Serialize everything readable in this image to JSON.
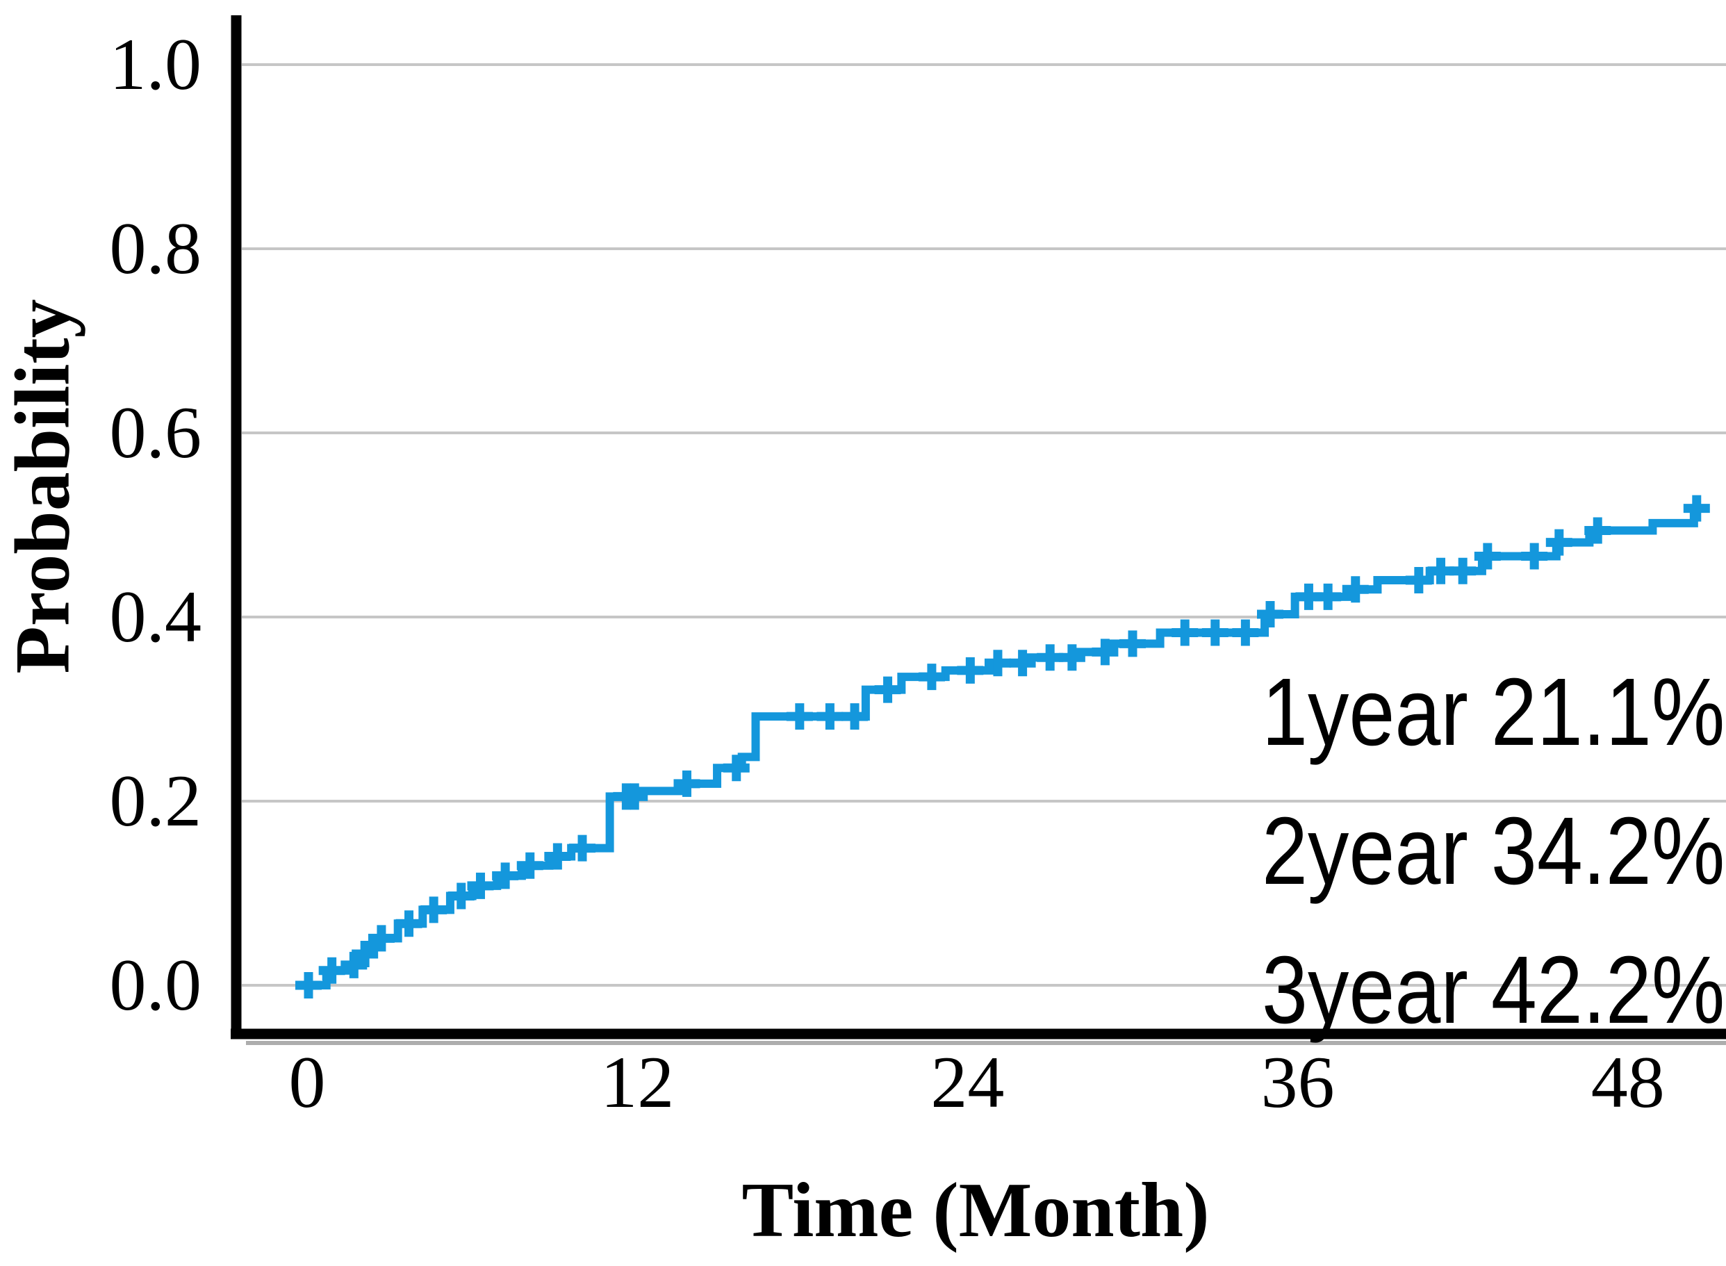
{
  "chart_data": {
    "type": "line",
    "subtype": "step-cumulative-incidence",
    "title": "",
    "xlabel": "Time (Month)",
    "ylabel": "Probability",
    "xlim": [
      -2.6,
      51.6
    ],
    "ylim": [
      0,
      1.0
    ],
    "x_ticks": [
      {
        "value": 0,
        "label": "0"
      },
      {
        "value": 12,
        "label": "12"
      },
      {
        "value": 24,
        "label": "24"
      },
      {
        "value": 36,
        "label": "36"
      },
      {
        "value": 48,
        "label": "48"
      }
    ],
    "y_ticks": [
      {
        "value": 0.0,
        "label": "0.0"
      },
      {
        "value": 0.2,
        "label": "0.2"
      },
      {
        "value": 0.4,
        "label": "0.4"
      },
      {
        "value": 0.6,
        "label": "0.6"
      },
      {
        "value": 0.8,
        "label": "0.8"
      },
      {
        "value": 1.0,
        "label": "1.0"
      }
    ],
    "grid": "horizontal",
    "legend": "none",
    "series": [
      {
        "name": "cumulative-incidence",
        "color": "#1497DC",
        "line_width": 12,
        "end_time": 50.9,
        "steps": [
          [
            0,
            0.0
          ],
          [
            0.7,
            0.016
          ],
          [
            1.5,
            0.022
          ],
          [
            1.9,
            0.034
          ],
          [
            2.4,
            0.051
          ],
          [
            3.3,
            0.067
          ],
          [
            4.2,
            0.082
          ],
          [
            5.2,
            0.097
          ],
          [
            6.0,
            0.108
          ],
          [
            6.9,
            0.119
          ],
          [
            7.8,
            0.13
          ],
          [
            8.8,
            0.14
          ],
          [
            9.6,
            0.149
          ],
          [
            11.0,
            0.205
          ],
          [
            12.0,
            0.211
          ],
          [
            13.5,
            0.219
          ],
          [
            14.9,
            0.236
          ],
          [
            15.8,
            0.248
          ],
          [
            16.3,
            0.292
          ],
          [
            20.3,
            0.321
          ],
          [
            21.6,
            0.335
          ],
          [
            23.2,
            0.342
          ],
          [
            24.8,
            0.35
          ],
          [
            26.3,
            0.356
          ],
          [
            28.0,
            0.362
          ],
          [
            29.2,
            0.371
          ],
          [
            31.0,
            0.383
          ],
          [
            34.8,
            0.403
          ],
          [
            35.9,
            0.422
          ],
          [
            37.8,
            0.43
          ],
          [
            38.9,
            0.44
          ],
          [
            40.8,
            0.45
          ],
          [
            42.7,
            0.466
          ],
          [
            45.4,
            0.481
          ],
          [
            46.6,
            0.494
          ],
          [
            48.9,
            0.502
          ],
          [
            50.4,
            0.518
          ]
        ],
        "censor_marks": [
          [
            0.05,
            0.0
          ],
          [
            0.9,
            0.016
          ],
          [
            1.7,
            0.022
          ],
          [
            2.1,
            0.034
          ],
          [
            2.7,
            0.051
          ],
          [
            3.7,
            0.067
          ],
          [
            4.6,
            0.082
          ],
          [
            5.6,
            0.097
          ],
          [
            6.3,
            0.108
          ],
          [
            7.2,
            0.119
          ],
          [
            8.1,
            0.13
          ],
          [
            9.1,
            0.14
          ],
          [
            10.0,
            0.149
          ],
          [
            11.6,
            0.205
          ],
          [
            11.9,
            0.205
          ],
          [
            13.8,
            0.219
          ],
          [
            15.6,
            0.236
          ],
          [
            17.9,
            0.292
          ],
          [
            19.0,
            0.292
          ],
          [
            19.9,
            0.292
          ],
          [
            21.1,
            0.321
          ],
          [
            22.7,
            0.335
          ],
          [
            24.1,
            0.342
          ],
          [
            25.1,
            0.35
          ],
          [
            26.0,
            0.35
          ],
          [
            27.0,
            0.356
          ],
          [
            27.8,
            0.356
          ],
          [
            29.0,
            0.362
          ],
          [
            30.0,
            0.371
          ],
          [
            31.9,
            0.383
          ],
          [
            33.0,
            0.383
          ],
          [
            34.1,
            0.383
          ],
          [
            35.0,
            0.403
          ],
          [
            36.4,
            0.422
          ],
          [
            37.1,
            0.422
          ],
          [
            38.1,
            0.43
          ],
          [
            40.4,
            0.44
          ],
          [
            41.2,
            0.45
          ],
          [
            42.0,
            0.45
          ],
          [
            42.9,
            0.466
          ],
          [
            44.6,
            0.466
          ],
          [
            45.5,
            0.481
          ],
          [
            46.9,
            0.494
          ],
          [
            50.5,
            0.518
          ]
        ]
      }
    ],
    "annotations": [
      "1year 21.1%",
      "2year 34.2%",
      "3year 42.2%"
    ]
  },
  "axes": {
    "x_title": "Time (Month)",
    "y_title": "Probability"
  },
  "colors": {
    "curve": "#1497DC",
    "grid": "#C6C6C6",
    "axis": "#000000",
    "axis_shadow": "#ADADAD",
    "text": "#000000",
    "background": "#FFFFFF"
  }
}
